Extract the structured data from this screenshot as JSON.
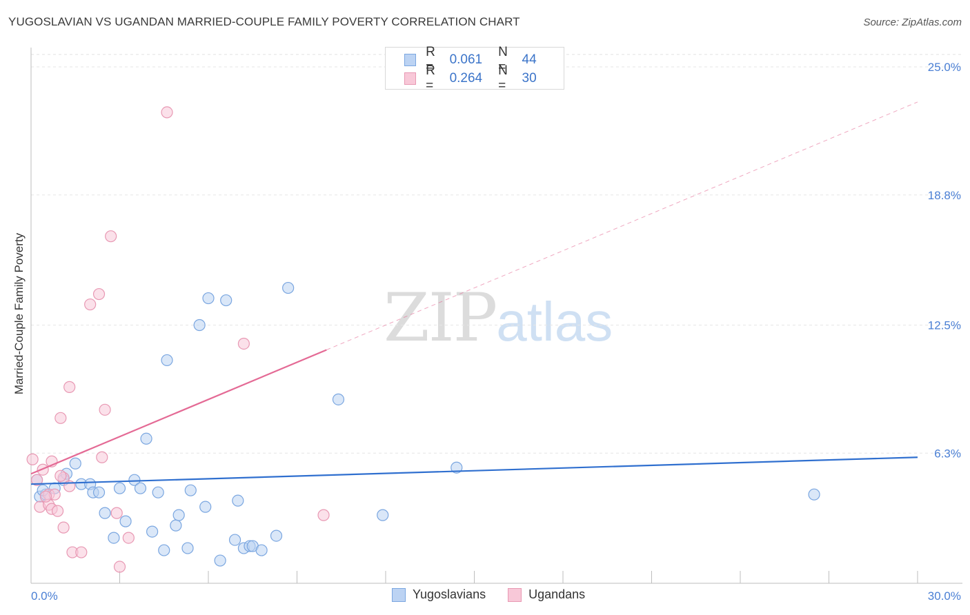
{
  "chart_data": {
    "type": "scatter",
    "title": "YUGOSLAVIAN VS UGANDAN MARRIED-COUPLE FAMILY POVERTY CORRELATION CHART",
    "source": "Source: ZipAtlas.com",
    "ylabel": "Married-Couple Family Poverty",
    "xlim": [
      0,
      30
    ],
    "ylim": [
      0,
      25
    ],
    "x_tick_labels": {
      "min": "0.0%",
      "max": "30.0%"
    },
    "y_ticks": [
      {
        "value": 6.3,
        "label": "6.3%"
      },
      {
        "value": 12.5,
        "label": "12.5%"
      },
      {
        "value": 18.8,
        "label": "18.8%"
      },
      {
        "value": 25.0,
        "label": "25.0%"
      }
    ],
    "watermark": {
      "zip": "ZIP",
      "atlas": "atlas"
    },
    "legend": [
      {
        "label": "R =",
        "r": "0.061",
        "n_label": "N =",
        "n": "44"
      },
      {
        "label": "R =",
        "r": "0.264",
        "n_label": "N =",
        "n": "30"
      }
    ],
    "series": [
      {
        "name": "Yugoslavians",
        "color": "#7aa6e0",
        "fill": "#bcd3f3",
        "trend": {
          "x0": 0,
          "y0": 4.8,
          "x1": 30,
          "y1": 6.1,
          "color": "#2f6fcf"
        },
        "points": [
          [
            0.2,
            5.0
          ],
          [
            0.3,
            4.2
          ],
          [
            0.5,
            4.3
          ],
          [
            0.8,
            4.6
          ],
          [
            1.1,
            5.0
          ],
          [
            1.2,
            5.3
          ],
          [
            1.5,
            5.8
          ],
          [
            1.7,
            4.8
          ],
          [
            2.0,
            4.8
          ],
          [
            2.1,
            4.4
          ],
          [
            2.3,
            4.4
          ],
          [
            2.5,
            3.4
          ],
          [
            2.8,
            2.2
          ],
          [
            3.0,
            4.6
          ],
          [
            3.2,
            3.0
          ],
          [
            3.5,
            5.0
          ],
          [
            3.7,
            4.6
          ],
          [
            3.9,
            7.0
          ],
          [
            4.1,
            2.5
          ],
          [
            4.3,
            4.4
          ],
          [
            4.5,
            1.6
          ],
          [
            4.6,
            10.8
          ],
          [
            4.9,
            2.8
          ],
          [
            5.0,
            3.3
          ],
          [
            5.3,
            1.7
          ],
          [
            5.4,
            4.5
          ],
          [
            5.7,
            12.5
          ],
          [
            5.9,
            3.7
          ],
          [
            6.0,
            13.8
          ],
          [
            6.4,
            1.1
          ],
          [
            6.6,
            13.7
          ],
          [
            6.9,
            2.1
          ],
          [
            7.0,
            4.0
          ],
          [
            7.2,
            1.7
          ],
          [
            7.4,
            1.8
          ],
          [
            7.5,
            1.8
          ],
          [
            7.8,
            1.6
          ],
          [
            8.3,
            2.3
          ],
          [
            8.7,
            14.3
          ],
          [
            10.4,
            8.9
          ],
          [
            11.9,
            3.3
          ],
          [
            14.4,
            5.6
          ],
          [
            26.5,
            4.3
          ],
          [
            0.4,
            4.5
          ]
        ]
      },
      {
        "name": "Ugandans",
        "color": "#e898b3",
        "fill": "#f8c8d8",
        "trend": {
          "x0": 0,
          "y0": 5.3,
          "x1": 10,
          "y1": 11.3,
          "dash_x1": 30,
          "dash_y1": 23.3,
          "color": "#e46a95"
        },
        "points": [
          [
            0.05,
            6.0
          ],
          [
            0.2,
            5.0
          ],
          [
            0.3,
            3.7
          ],
          [
            0.4,
            5.5
          ],
          [
            0.6,
            4.3
          ],
          [
            0.6,
            3.8
          ],
          [
            0.7,
            3.6
          ],
          [
            0.7,
            5.9
          ],
          [
            0.8,
            4.3
          ],
          [
            0.9,
            3.5
          ],
          [
            1.0,
            8.0
          ],
          [
            1.1,
            2.7
          ],
          [
            1.1,
            5.1
          ],
          [
            1.3,
            4.7
          ],
          [
            1.3,
            9.5
          ],
          [
            1.4,
            1.5
          ],
          [
            1.7,
            1.5
          ],
          [
            2.0,
            13.5
          ],
          [
            2.3,
            14.0
          ],
          [
            2.4,
            6.1
          ],
          [
            2.5,
            8.4
          ],
          [
            2.7,
            16.8
          ],
          [
            2.9,
            3.4
          ],
          [
            3.0,
            0.8
          ],
          [
            3.3,
            2.2
          ],
          [
            4.6,
            22.8
          ],
          [
            7.2,
            11.6
          ],
          [
            9.9,
            3.3
          ],
          [
            1.0,
            5.2
          ],
          [
            0.5,
            4.2
          ]
        ]
      }
    ]
  }
}
